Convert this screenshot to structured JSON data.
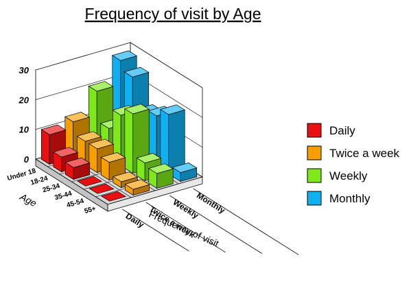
{
  "chart_data": {
    "type": "bar",
    "title": "Frequency of visit by Age",
    "age_axis_label": "Age",
    "frequency_axis_label": "Frequency of visit",
    "age_groups": [
      "Under 18",
      "18-24",
      "25-34",
      "35-44",
      "45-54",
      "55+"
    ],
    "frequency_ticks": [
      "Daily",
      "Twice a week",
      "Weekly",
      "Monthly"
    ],
    "zlim": [
      0,
      30
    ],
    "z_ticks": [
      "0",
      "10",
      "20",
      "30"
    ],
    "grid": true,
    "legend_position": "right",
    "series": [
      {
        "name": "Daily",
        "color": "#e81010",
        "values": [
          10,
          5,
          4,
          1,
          1,
          1
        ]
      },
      {
        "name": "Twice a week",
        "color": "#f5a000",
        "values": [
          12,
          8,
          8,
          6,
          2,
          2
        ]
      },
      {
        "name": "Weekly",
        "color": "#7ee81a",
        "values": [
          20,
          10,
          17,
          20,
          6,
          5
        ]
      },
      {
        "name": "Monthly",
        "color": "#10b0f0",
        "values": [
          28,
          25,
          15,
          17,
          20,
          3
        ]
      }
    ]
  }
}
